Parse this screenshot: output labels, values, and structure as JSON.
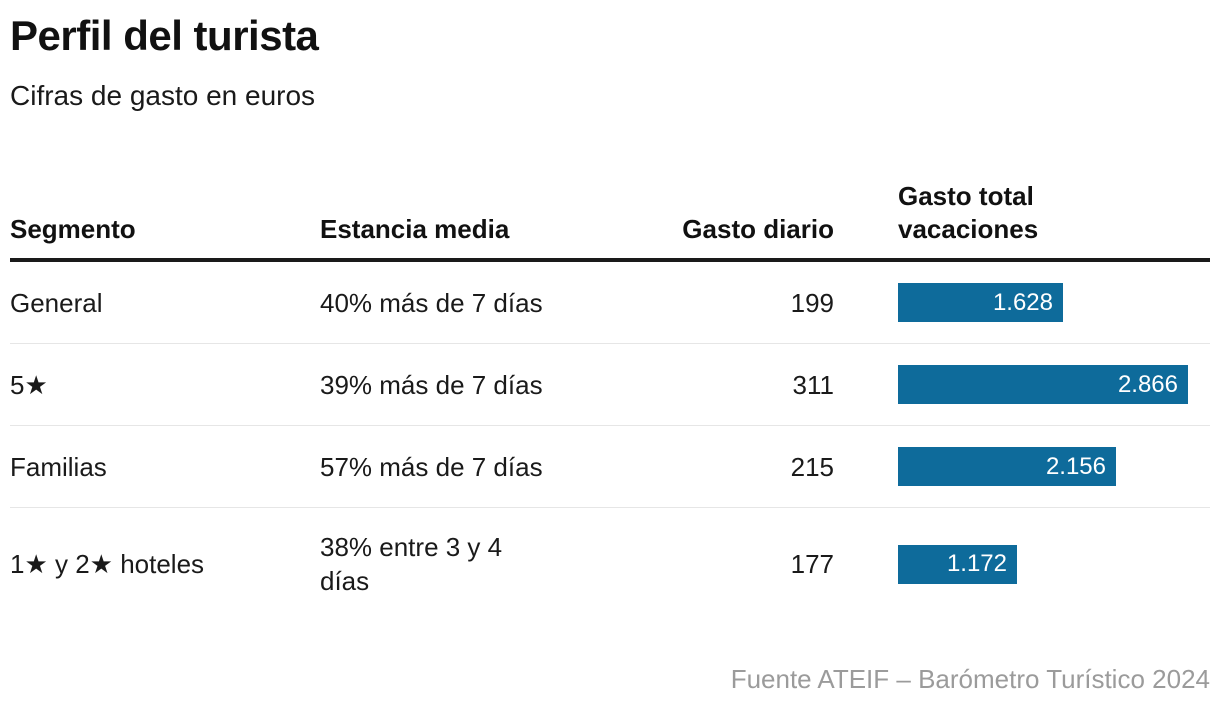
{
  "title": "Perfil del turista",
  "subtitle": "Cifras de gasto en euros",
  "source": "Fuente ATEIF – Barómetro Turístico 2024",
  "colors": {
    "bar": "#0E6B9B",
    "bar_label": "#ffffff",
    "heading": "#111111",
    "body_text": "#1a1a1a",
    "muted": "#9b9b9b",
    "header_rule": "#1a1a1a",
    "row_divider": "#e6e6e6",
    "background": "#ffffff"
  },
  "chart_data": {
    "type": "table",
    "title": "Perfil del turista",
    "subtitle": "Cifras de gasto en euros",
    "source": "Fuente ATEIF – Barómetro Turístico 2024",
    "columns": [
      "Segmento",
      "Estancia media",
      "Gasto diario",
      "Gasto total vacaciones"
    ],
    "bar_column": {
      "field": "gasto_total",
      "label_field": "gasto_total_label",
      "max_value": 2866,
      "color": "#0E6B9B",
      "unit": "euros"
    },
    "rows": [
      {
        "segmento": "General",
        "estancia_media": "40% más de 7 días",
        "gasto_diario": 199,
        "gasto_total": 1628,
        "gasto_total_label": "1.628"
      },
      {
        "segmento": "5★",
        "estancia_media": "39% más de 7 días",
        "gasto_diario": 311,
        "gasto_total": 2866,
        "gasto_total_label": "2.866"
      },
      {
        "segmento": "Familias",
        "estancia_media": "57% más de 7 días",
        "gasto_diario": 215,
        "gasto_total": 2156,
        "gasto_total_label": "2.156"
      },
      {
        "segmento": "1★ y 2★ hoteles",
        "estancia_media": "38% entre 3 y 4 días",
        "gasto_diario": 177,
        "gasto_total": 1172,
        "gasto_total_label": "1.172"
      }
    ]
  }
}
